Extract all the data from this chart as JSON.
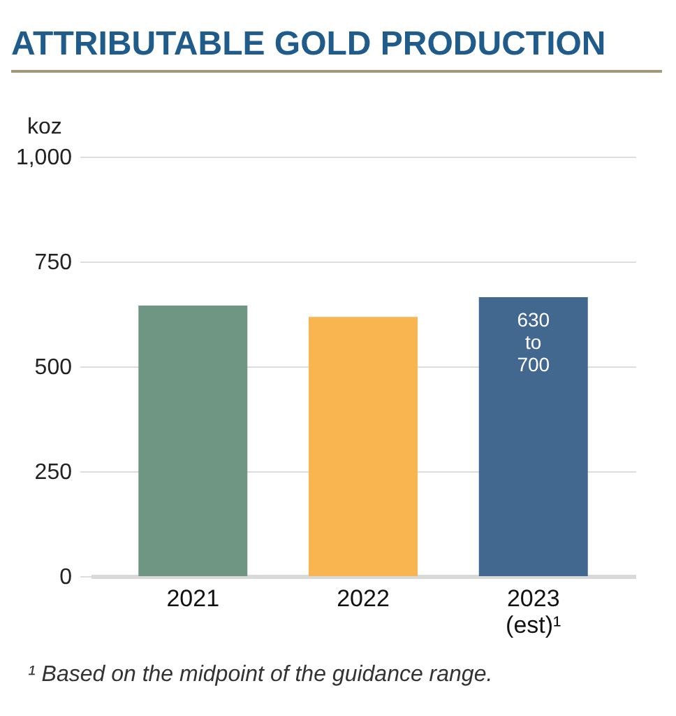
{
  "chart_data": {
    "type": "bar",
    "title": "ATTRIBUTABLE GOLD PRODUCTION",
    "ylabel": "koz",
    "categories": [
      "2021",
      "2022",
      "2023 (est)¹"
    ],
    "values": [
      645,
      618,
      665
    ],
    "colors": [
      "#6f9683",
      "#f9b54f",
      "#436890"
    ],
    "ylim": [
      0,
      1000
    ],
    "yticks": [
      0,
      {
        "value": 250,
        "label": "250"
      },
      {
        "value": 500,
        "label": "500"
      },
      {
        "value": 750,
        "label": "750"
      },
      {
        "value": 1000,
        "label": "1,000"
      }
    ],
    "grid": "y",
    "annotations": [
      {
        "text": "630 to 700",
        "x": "2023 (est)¹",
        "y": 665
      },
      "¹ Based on the midpoint of the guidance range."
    ]
  }
}
